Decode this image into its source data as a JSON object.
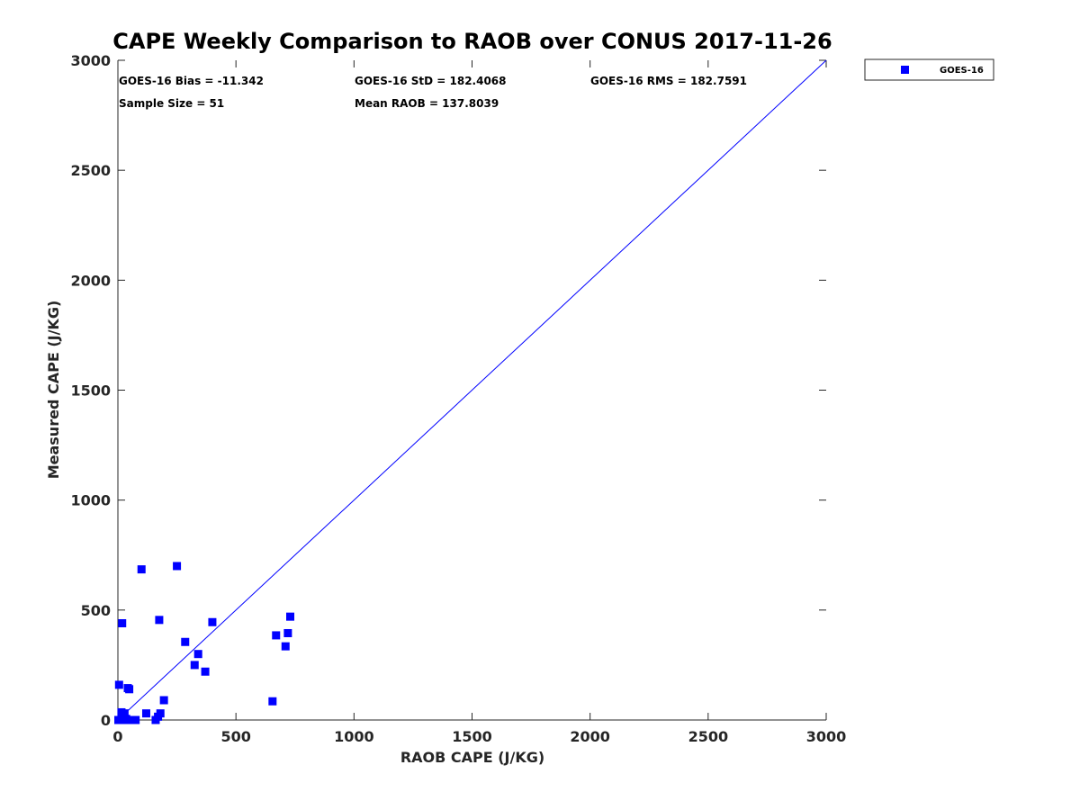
{
  "chart_data": {
    "type": "scatter",
    "title": "CAPE Weekly Comparison to RAOB over CONUS 2017-11-26",
    "xlabel": "RAOB CAPE (J/KG)",
    "ylabel": "Measured CAPE (J/KG)",
    "xlim": [
      0,
      3000
    ],
    "ylim": [
      0,
      3000
    ],
    "xticks": [
      0,
      500,
      1000,
      1500,
      2000,
      2500,
      3000
    ],
    "yticks": [
      0,
      500,
      1000,
      1500,
      2000,
      2500,
      3000
    ],
    "grid": false,
    "legend_position": "outside-top-right",
    "reference_line": {
      "from": [
        0,
        0
      ],
      "to": [
        3000,
        3000
      ],
      "color": "#0000ff"
    },
    "series": [
      {
        "name": "GOES-16",
        "color": "#0000ff",
        "marker": "square",
        "points": [
          [
            2,
            0
          ],
          [
            8,
            0
          ],
          [
            5,
            160
          ],
          [
            18,
            440
          ],
          [
            15,
            35
          ],
          [
            28,
            30
          ],
          [
            35,
            5
          ],
          [
            42,
            145
          ],
          [
            48,
            140
          ],
          [
            20,
            0
          ],
          [
            30,
            0
          ],
          [
            40,
            0
          ],
          [
            55,
            0
          ],
          [
            62,
            0
          ],
          [
            75,
            0
          ],
          [
            100,
            685
          ],
          [
            120,
            30
          ],
          [
            160,
            0
          ],
          [
            170,
            15
          ],
          [
            175,
            455
          ],
          [
            180,
            30
          ],
          [
            195,
            90
          ],
          [
            250,
            700
          ],
          [
            285,
            355
          ],
          [
            325,
            250
          ],
          [
            340,
            300
          ],
          [
            370,
            220
          ],
          [
            400,
            445
          ],
          [
            655,
            85
          ],
          [
            670,
            385
          ],
          [
            710,
            335
          ],
          [
            720,
            395
          ],
          [
            730,
            470
          ]
        ]
      }
    ],
    "stats": {
      "bias": "GOES-16 Bias = -11.342",
      "std": "GOES-16 StD = 182.4068",
      "rms": "GOES-16 RMS = 182.7591",
      "sample_size": "Sample Size = 51",
      "mean_raob": "Mean RAOB = 137.8039"
    }
  }
}
